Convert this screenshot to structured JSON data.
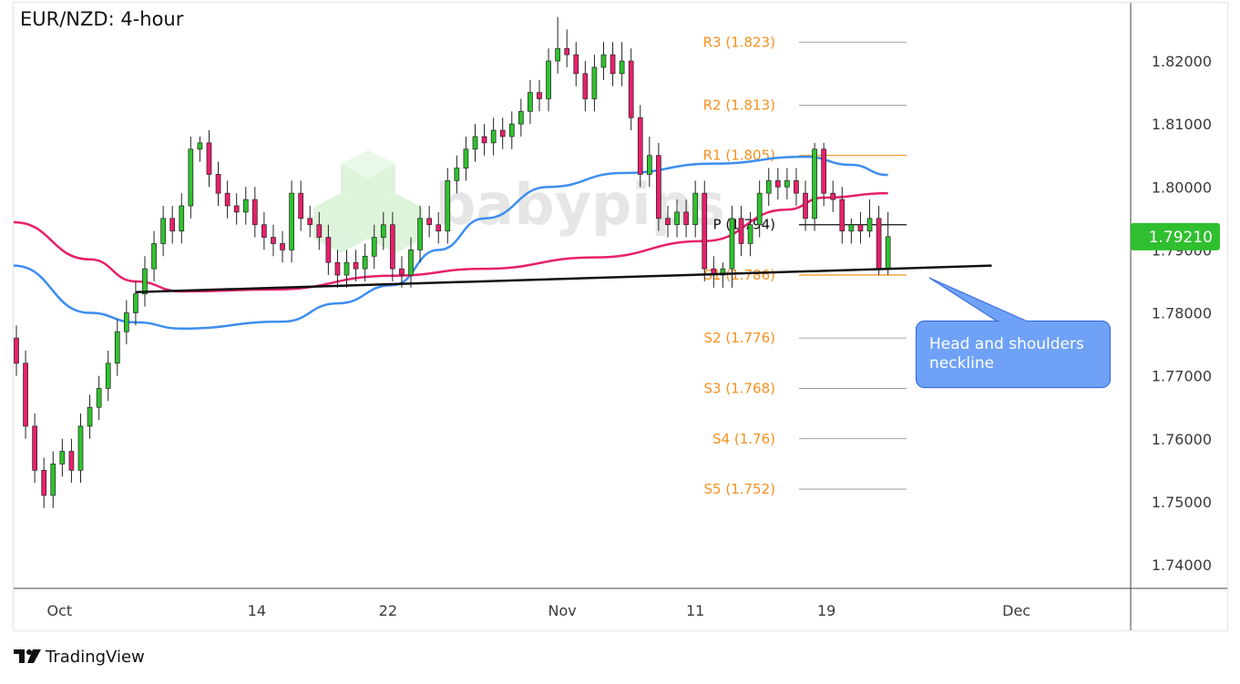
{
  "header": {
    "title": "EUR/NZD: 4-hour"
  },
  "branding": {
    "tradingview": "TradingView",
    "watermark": "babypips"
  },
  "chart_data": {
    "type": "candlestick",
    "title": "EUR/NZD: 4-hour",
    "ylim": [
      1.7335,
      1.8285
    ],
    "grid": false,
    "colors": {
      "up": "#2fc22f",
      "down": "#e8206b",
      "sma_fast": "#3d8ef0",
      "sma_slow": "#e8206b",
      "neckline": "#111111",
      "pivot_accent": "#f5901e",
      "last_price_bg": "#2fbf2f",
      "callout_bg": "#6fa2f7"
    },
    "y_ticks": [
      "1.82000",
      "1.81000",
      "1.80000",
      "1.79000",
      "1.78000",
      "1.77000",
      "1.76000",
      "1.75000",
      "1.74000"
    ],
    "y_tick_values": [
      1.82,
      1.81,
      1.8,
      1.79,
      1.78,
      1.77,
      1.76,
      1.75,
      1.74
    ],
    "x_ticks": [
      {
        "label": "Oct",
        "index": 4.7
      },
      {
        "label": "14",
        "index": 26.2
      },
      {
        "label": "22",
        "index": 40.5
      },
      {
        "label": "Nov",
        "index": 59.5
      },
      {
        "label": "11",
        "index": 74
      },
      {
        "label": "19",
        "index": 88.3
      },
      {
        "label": "Dec",
        "index": 109
      }
    ],
    "last_price": "1.79210",
    "candles": [
      [
        1.776,
        1.778,
        1.77,
        1.772
      ],
      [
        1.772,
        1.774,
        1.76,
        1.762
      ],
      [
        1.762,
        1.764,
        1.753,
        1.755
      ],
      [
        1.755,
        1.757,
        1.749,
        1.751
      ],
      [
        1.751,
        1.758,
        1.749,
        1.756
      ],
      [
        1.756,
        1.76,
        1.754,
        1.758
      ],
      [
        1.758,
        1.76,
        1.753,
        1.755
      ],
      [
        1.755,
        1.764,
        1.753,
        1.762
      ],
      [
        1.762,
        1.767,
        1.76,
        1.765
      ],
      [
        1.765,
        1.77,
        1.763,
        1.768
      ],
      [
        1.768,
        1.774,
        1.766,
        1.772
      ],
      [
        1.772,
        1.779,
        1.77,
        1.777
      ],
      [
        1.777,
        1.782,
        1.775,
        1.78
      ],
      [
        1.78,
        1.785,
        1.778,
        1.783
      ],
      [
        1.783,
        1.789,
        1.781,
        1.787
      ],
      [
        1.787,
        1.793,
        1.785,
        1.791
      ],
      [
        1.791,
        1.797,
        1.789,
        1.795
      ],
      [
        1.795,
        1.797,
        1.791,
        1.793
      ],
      [
        1.793,
        1.799,
        1.791,
        1.797
      ],
      [
        1.797,
        1.808,
        1.795,
        1.806
      ],
      [
        1.806,
        1.808,
        1.804,
        1.807
      ],
      [
        1.807,
        1.809,
        1.8,
        1.802
      ],
      [
        1.802,
        1.804,
        1.797,
        1.799
      ],
      [
        1.799,
        1.801,
        1.795,
        1.797
      ],
      [
        1.797,
        1.799,
        1.794,
        1.796
      ],
      [
        1.796,
        1.8,
        1.794,
        1.798
      ],
      [
        1.798,
        1.8,
        1.792,
        1.794
      ],
      [
        1.794,
        1.796,
        1.79,
        1.792
      ],
      [
        1.792,
        1.794,
        1.789,
        1.791
      ],
      [
        1.791,
        1.793,
        1.788,
        1.79
      ],
      [
        1.79,
        1.801,
        1.788,
        1.799
      ],
      [
        1.799,
        1.801,
        1.793,
        1.795
      ],
      [
        1.795,
        1.797,
        1.792,
        1.794
      ],
      [
        1.794,
        1.796,
        1.79,
        1.792
      ],
      [
        1.792,
        1.794,
        1.786,
        1.788
      ],
      [
        1.788,
        1.79,
        1.784,
        1.786
      ],
      [
        1.786,
        1.79,
        1.784,
        1.788
      ],
      [
        1.788,
        1.79,
        1.785,
        1.787
      ],
      [
        1.787,
        1.791,
        1.785,
        1.789
      ],
      [
        1.789,
        1.794,
        1.787,
        1.792
      ],
      [
        1.792,
        1.796,
        1.79,
        1.794
      ],
      [
        1.794,
        1.796,
        1.785,
        1.787
      ],
      [
        1.787,
        1.789,
        1.784,
        1.786
      ],
      [
        1.786,
        1.792,
        1.784,
        1.79
      ],
      [
        1.79,
        1.797,
        1.788,
        1.795
      ],
      [
        1.795,
        1.797,
        1.792,
        1.794
      ],
      [
        1.794,
        1.796,
        1.791,
        1.793
      ],
      [
        1.793,
        1.803,
        1.791,
        1.801
      ],
      [
        1.801,
        1.805,
        1.799,
        1.803
      ],
      [
        1.803,
        1.808,
        1.801,
        1.806
      ],
      [
        1.806,
        1.81,
        1.804,
        1.808
      ],
      [
        1.808,
        1.81,
        1.805,
        1.807
      ],
      [
        1.807,
        1.811,
        1.805,
        1.809
      ],
      [
        1.809,
        1.811,
        1.806,
        1.808
      ],
      [
        1.808,
        1.812,
        1.806,
        1.81
      ],
      [
        1.81,
        1.814,
        1.808,
        1.812
      ],
      [
        1.812,
        1.817,
        1.81,
        1.815
      ],
      [
        1.815,
        1.817,
        1.812,
        1.814
      ],
      [
        1.814,
        1.822,
        1.812,
        1.82
      ],
      [
        1.82,
        1.827,
        1.818,
        1.822
      ],
      [
        1.822,
        1.825,
        1.819,
        1.821
      ],
      [
        1.821,
        1.823,
        1.816,
        1.818
      ],
      [
        1.818,
        1.82,
        1.812,
        1.814
      ],
      [
        1.814,
        1.821,
        1.812,
        1.819
      ],
      [
        1.819,
        1.823,
        1.817,
        1.821
      ],
      [
        1.821,
        1.823,
        1.816,
        1.818
      ],
      [
        1.818,
        1.823,
        1.816,
        1.82
      ],
      [
        1.82,
        1.822,
        1.809,
        1.811
      ],
      [
        1.811,
        1.813,
        1.8,
        1.802
      ],
      [
        1.802,
        1.808,
        1.8,
        1.805
      ],
      [
        1.805,
        1.807,
        1.793,
        1.795
      ],
      [
        1.795,
        1.797,
        1.792,
        1.794
      ],
      [
        1.794,
        1.798,
        1.792,
        1.796
      ],
      [
        1.796,
        1.798,
        1.792,
        1.794
      ],
      [
        1.794,
        1.801,
        1.792,
        1.799
      ],
      [
        1.799,
        1.801,
        1.785,
        1.787
      ],
      [
        1.787,
        1.789,
        1.784,
        1.786
      ],
      [
        1.786,
        1.788,
        1.784,
        1.787
      ],
      [
        1.787,
        1.797,
        1.784,
        1.795
      ],
      [
        1.795,
        1.797,
        1.789,
        1.791
      ],
      [
        1.791,
        1.796,
        1.789,
        1.794
      ],
      [
        1.794,
        1.801,
        1.792,
        1.799
      ],
      [
        1.799,
        1.803,
        1.797,
        1.801
      ],
      [
        1.801,
        1.803,
        1.798,
        1.8
      ],
      [
        1.8,
        1.803,
        1.798,
        1.801
      ],
      [
        1.801,
        1.803,
        1.797,
        1.799
      ],
      [
        1.799,
        1.801,
        1.793,
        1.795
      ],
      [
        1.795,
        1.807,
        1.793,
        1.806
      ],
      [
        1.806,
        1.807,
        1.797,
        1.799
      ],
      [
        1.799,
        1.801,
        1.796,
        1.798
      ],
      [
        1.798,
        1.8,
        1.791,
        1.793
      ],
      [
        1.793,
        1.795,
        1.791,
        1.794
      ],
      [
        1.794,
        1.796,
        1.791,
        1.793
      ],
      [
        1.793,
        1.798,
        1.792,
        1.795
      ],
      [
        1.795,
        1.797,
        1.786,
        1.787
      ],
      [
        1.787,
        1.796,
        1.786,
        1.7921
      ]
    ],
    "moving_averages": [
      {
        "color": "#3d8ef0",
        "points": [
          [
            -0.3,
            1.7875
          ],
          [
            8,
            1.78
          ],
          [
            13,
            1.7785
          ],
          [
            18,
            1.7775
          ],
          [
            29,
            1.7786
          ],
          [
            35,
            1.7815
          ],
          [
            41,
            1.7844
          ],
          [
            46,
            1.79
          ],
          [
            51,
            1.795
          ],
          [
            58,
            1.8
          ],
          [
            66,
            1.8022
          ],
          [
            76,
            1.8037
          ],
          [
            86,
            1.8048
          ],
          [
            91,
            1.8035
          ],
          [
            95,
            1.8019
          ]
        ]
      },
      {
        "color": "#e8206b",
        "points": [
          [
            -0.3,
            1.7944
          ],
          [
            8,
            1.7885
          ],
          [
            13,
            1.785
          ],
          [
            18,
            1.7834
          ],
          [
            28,
            1.7837
          ],
          [
            41,
            1.7859
          ],
          [
            51,
            1.787
          ],
          [
            63,
            1.7888
          ],
          [
            75,
            1.7914
          ],
          [
            84,
            1.7964
          ],
          [
            88,
            1.7983
          ],
          [
            95,
            1.799
          ]
        ]
      }
    ],
    "neckline": [
      [
        13,
        1.7833
      ],
      [
        106.3,
        1.7875
      ]
    ],
    "pivots": [
      {
        "label": "R3 (1.823)",
        "value": 1.823,
        "style": "grey"
      },
      {
        "label": "R2 (1.813)",
        "value": 1.813,
        "style": "grey"
      },
      {
        "label": "R1 (1.805)",
        "value": 1.805,
        "style": "accent"
      },
      {
        "label": "P (1.794)",
        "value": 1.794,
        "style": "black"
      },
      {
        "label": "S1 (1.786)",
        "value": 1.786,
        "style": "accent"
      },
      {
        "label": "S2 (1.776)",
        "value": 1.776,
        "style": "grey"
      },
      {
        "label": "S3 (1.768)",
        "value": 1.768,
        "style": "grey"
      },
      {
        "label": "S4 (1.76)",
        "value": 1.76,
        "style": "grey"
      },
      {
        "label": "S5 (1.752)",
        "value": 1.752,
        "style": "grey"
      }
    ],
    "annotation": {
      "line1": "Head and shoulders",
      "line2": "neckline"
    }
  }
}
